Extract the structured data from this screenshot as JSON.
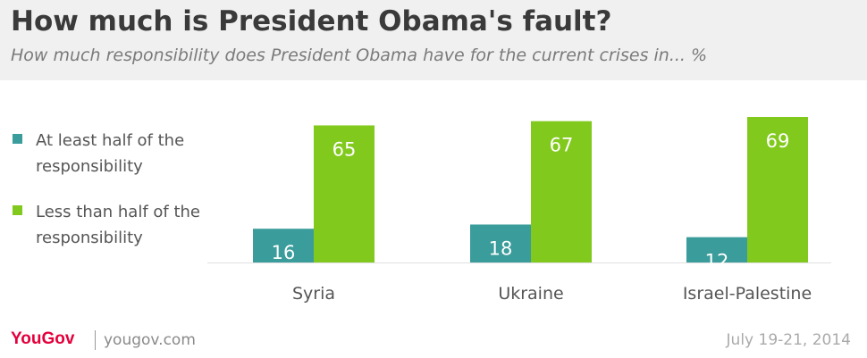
{
  "header": {
    "title": "How much is President Obama's fault?",
    "subtitle": "How much responsibility does President Obama have for the current crises in... %"
  },
  "legend": {
    "items": [
      {
        "label": "At least half of the responsibility",
        "color": "#3a9c9b"
      },
      {
        "label": "Less than half of the responsibility",
        "color": "#82c91e"
      }
    ]
  },
  "chart_data": {
    "type": "bar",
    "categories": [
      "Syria",
      "Ukraine",
      "Israel-Palestine"
    ],
    "series": [
      {
        "name": "At least half of the responsibility",
        "values": [
          16,
          18,
          12
        ],
        "color": "#3a9c9b"
      },
      {
        "name": "Less than half of the responsibility",
        "values": [
          65,
          67,
          69
        ],
        "color": "#82c91e"
      }
    ],
    "title": "How much is President Obama's fault?",
    "subtitle": "How much responsibility does President Obama have for the current crises in... %",
    "xlabel": "",
    "ylabel": "",
    "ylim": [
      0,
      69
    ],
    "grid": false,
    "legend_position": "left"
  },
  "footer": {
    "brand": "YouGov",
    "site": "yougov.com",
    "date": "July 19-21, 2014"
  }
}
